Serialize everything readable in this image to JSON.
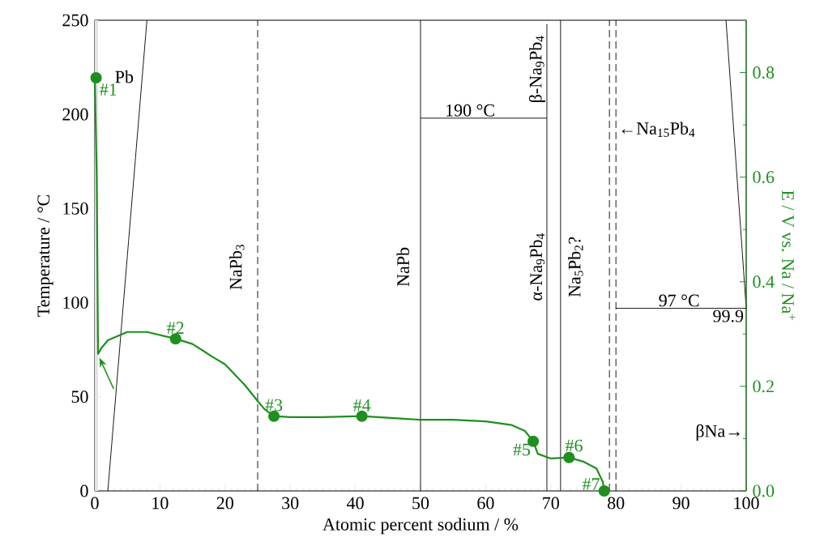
{
  "chart_data": {
    "type": "line",
    "xlabel": "Atomic percent sodium / %",
    "ylabel": "Temperature / °C",
    "y2label": "E / V vs. Na / Na$^{+}$",
    "xlim": [
      0,
      100
    ],
    "ylim": [
      0,
      250
    ],
    "y2lim": [
      0,
      0.9
    ],
    "xticks": [
      0,
      10,
      20,
      30,
      40,
      50,
      60,
      70,
      80,
      90,
      100
    ],
    "yticks": [
      0,
      50,
      100,
      150,
      200,
      250
    ],
    "y2ticks": [
      {
        "value": 0,
        "label": "0.0"
      },
      0.2,
      0.4,
      0.6,
      0.8
    ],
    "bands": [
      {
        "axis": "x",
        "from": 0,
        "to": 0.5,
        "color": "#e3e3e3"
      }
    ],
    "series": [
      {
        "color": "#000000",
        "line_style": "solid",
        "x": [
          2,
          8
        ],
        "values": [
          0,
          250
        ]
      },
      {
        "color": "#000000",
        "line_style": "dashed",
        "x": [
          25,
          25
        ],
        "values": [
          0,
          250
        ]
      },
      {
        "color": "#000000",
        "line_style": "solid",
        "x": [
          50,
          50
        ],
        "values": [
          0,
          250
        ]
      },
      {
        "color": "#000000",
        "line_style": "solid",
        "x": [
          50,
          69.4
        ],
        "values": [
          198,
          198
        ]
      },
      {
        "color": "#000000",
        "line_style": "solid",
        "x": [
          69.4,
          69.4
        ],
        "values": [
          0,
          248
        ]
      },
      {
        "color": "#000000",
        "line_style": "solid",
        "x": [
          71.5,
          71.5
        ],
        "values": [
          0,
          250
        ]
      },
      {
        "color": "#000000",
        "line_style": "dashed",
        "x": [
          79,
          79
        ],
        "values": [
          0,
          250
        ]
      },
      {
        "color": "#000000",
        "line_style": "dashed",
        "x": [
          80,
          80
        ],
        "values": [
          0,
          250
        ]
      },
      {
        "color": "#000000",
        "line_style": "solid",
        "x": [
          80,
          100
        ],
        "values": [
          97,
          97
        ]
      },
      {
        "color": "#000000",
        "line_style": "solid",
        "x": [
          96.9,
          100
        ],
        "values": [
          250,
          97
        ]
      },
      {
        "color": "#1f8f1f",
        "line_style": "solid",
        "axis": "y2",
        "x": [
          0,
          0.3,
          0.5,
          1,
          2,
          5,
          8,
          12.4,
          15,
          18,
          20,
          23,
          25,
          26,
          27.5,
          30,
          35,
          41,
          50,
          55,
          60,
          64,
          66,
          67.3,
          68,
          70,
          72.8,
          75,
          77,
          78,
          78.2
        ],
        "values": [
          0.79,
          0.6,
          0.262,
          0.273,
          0.288,
          0.304,
          0.304,
          0.291,
          0.281,
          0.257,
          0.242,
          0.203,
          0.172,
          0.157,
          0.143,
          0.141,
          0.141,
          0.143,
          0.136,
          0.136,
          0.133,
          0.126,
          0.115,
          0.095,
          0.071,
          0.062,
          0.064,
          0.056,
          0.043,
          0.017,
          0.0
        ]
      },
      {
        "type": "scatter",
        "color": "#1f8f1f",
        "marker": "circle",
        "axis": "y2",
        "x": [
          0.2,
          12.4,
          27.5,
          41.0,
          67.3,
          72.8,
          78.2
        ],
        "values": [
          0.79,
          0.291,
          0.143,
          0.143,
          0.095,
          0.064,
          0.0
        ]
      }
    ],
    "annotations": [
      "Pb",
      "NaPb$_{3}$",
      "NaPb",
      {
        "text": "190 °C",
        "x": 57.6,
        "y": 198
      },
      "β-Na$_{9}$Pb$_{4}$",
      "α-Na$_{9}$Pb$_{4}$",
      "Na$_{5}$Pb$_{2}$?",
      "←Na$_{15}$Pb$_{4}$",
      {
        "text": "97 °C",
        "x": 89.7,
        "y": 97
      },
      {
        "text": "99.9",
        "x": 99.9,
        "y": 97
      },
      "βNa→",
      "#1",
      "#2",
      "#3",
      "#4",
      "#5",
      "#6",
      "#7"
    ]
  }
}
